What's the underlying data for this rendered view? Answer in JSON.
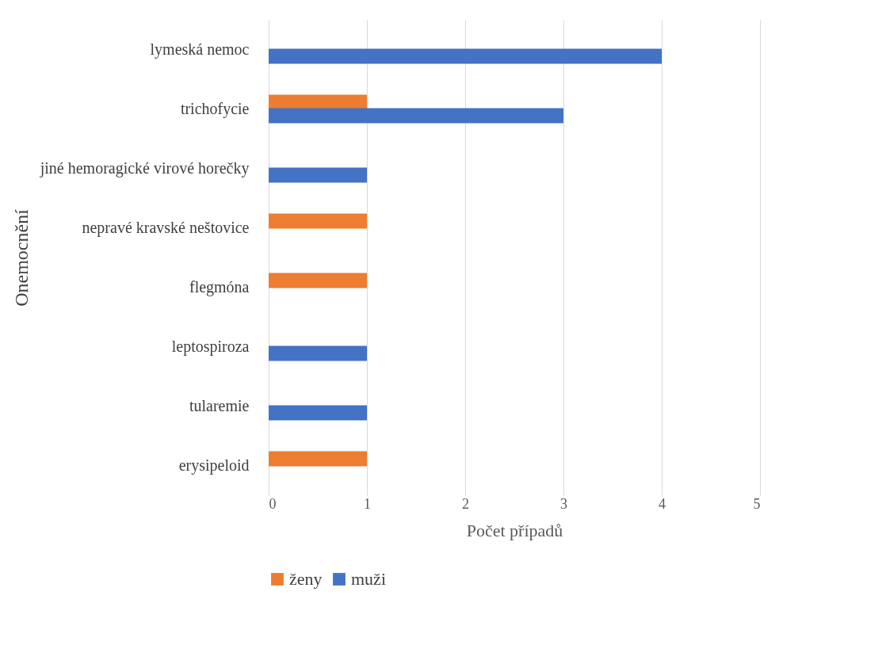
{
  "chart_data": {
    "type": "bar",
    "orientation": "horizontal",
    "xlabel": "Počet případů",
    "ylabel": "Onemocnění",
    "categories": [
      "lymeská nemoc",
      "trichofycie",
      "jiné hemoragické virové horečky",
      "nepravé kravské neštovice",
      "flegmóna",
      "leptospiroza",
      "tularemie",
      "erysipeloid"
    ],
    "series": [
      {
        "name": "ženy",
        "color": "#ed7d31",
        "values": [
          null,
          1,
          null,
          1,
          1,
          null,
          null,
          1
        ]
      },
      {
        "name": "muži",
        "color": "#4472c4",
        "values": [
          4,
          3,
          1,
          null,
          null,
          1,
          1,
          null
        ]
      }
    ],
    "xlim": [
      0,
      5
    ],
    "xticks": [
      0,
      1,
      2,
      3,
      4,
      5
    ],
    "grid": "x",
    "legend": "bottom"
  }
}
